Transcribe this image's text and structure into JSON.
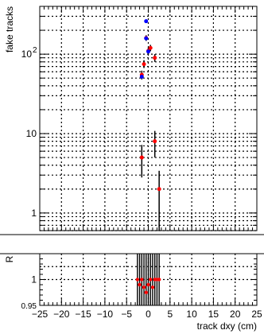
{
  "chart_data": [
    {
      "type": "scatter",
      "panel": "main",
      "ylabel": "fake tracks",
      "log_y": true,
      "xlim": [
        -25,
        25
      ],
      "ylim": [
        0.6,
        400
      ],
      "grid": true,
      "y_tick_labels": [
        {
          "value": 1,
          "label": "1"
        },
        {
          "value": 10,
          "label": "10"
        },
        {
          "value": 100,
          "label": "10",
          "exp": "2"
        }
      ],
      "series": [
        {
          "color": "#ff0000",
          "points": [
            {
              "x": -1.5,
              "y": 5,
              "ylo": 2.8,
              "yhi": 7.2
            },
            {
              "x": -1.5,
              "y": 55,
              "ylo": 48,
              "yhi": 62
            },
            {
              "x": -1.0,
              "y": 75,
              "ylo": 67,
              "yhi": 84
            },
            {
              "x": 0.0,
              "y": 110,
              "ylo": 99,
              "yhi": 121
            },
            {
              "x": -0.5,
              "y": 160,
              "ylo": 147,
              "yhi": 173
            },
            {
              "x": 0.5,
              "y": 120,
              "ylo": 109,
              "yhi": 131
            },
            {
              "x": 1.5,
              "y": 90,
              "ylo": 80,
              "yhi": 100
            },
            {
              "x": 1.5,
              "y": 8,
              "ylo": 5,
              "yhi": 10.8
            },
            {
              "x": 2.5,
              "y": 2,
              "ylo": 0.6,
              "yhi": 3.4
            }
          ]
        },
        {
          "color": "#0000ff",
          "points": [
            {
              "x": -1.5,
              "y": 52
            },
            {
              "x": -0.5,
              "y": 158
            },
            {
              "x": -0.5,
              "y": 260
            },
            {
              "x": 0.0,
              "y": 108
            }
          ]
        }
      ]
    },
    {
      "type": "scatter",
      "panel": "ratio",
      "ylabel": "R",
      "xlabel": "track dxy (cm)",
      "xlim": [
        -25,
        25
      ],
      "ylim": [
        0.95,
        1.05
      ],
      "grid": true,
      "x_ticks": [
        -25,
        -20,
        -15,
        -10,
        -5,
        0,
        5,
        10,
        15,
        20,
        25
      ],
      "x_tick_labels": [
        "−25",
        "−20",
        "−15",
        "−10",
        "−5",
        "0",
        "5",
        "10",
        "15",
        "20",
        "25"
      ],
      "y_tick_labels": [
        {
          "value": 1.0,
          "label": "1"
        },
        {
          "value": 0.95,
          "label": "0.95"
        }
      ],
      "series": [
        {
          "color": "#ff0000",
          "points": [
            {
              "x": -2.5,
              "y": 1.0
            },
            {
              "x": -2.0,
              "y": 0.99
            },
            {
              "x": -1.5,
              "y": 1.0
            },
            {
              "x": -1.0,
              "y": 0.985
            },
            {
              "x": -0.5,
              "y": 0.975
            },
            {
              "x": 0.0,
              "y": 0.99
            },
            {
              "x": 0.5,
              "y": 1.0
            },
            {
              "x": 1.0,
              "y": 0.985
            },
            {
              "x": 1.5,
              "y": 1.0
            },
            {
              "x": 2.0,
              "y": 1.0
            },
            {
              "x": 2.5,
              "y": 1.0
            }
          ]
        }
      ]
    }
  ]
}
